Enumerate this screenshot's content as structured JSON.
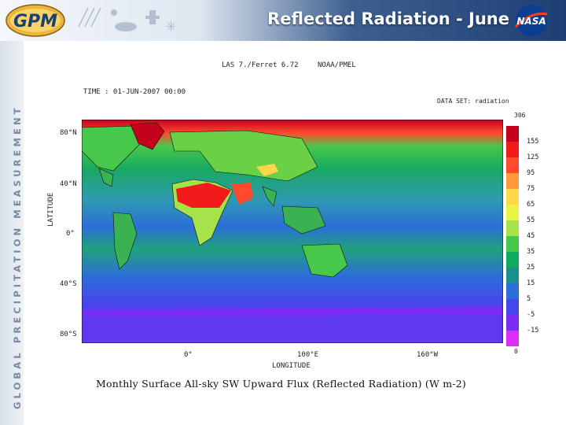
{
  "header": {
    "title": "Reflected Radiation - June",
    "colors": {
      "header_blue": "#1d3f73",
      "title_text": "#ffffff"
    }
  },
  "logos": {
    "gpm": "GPM",
    "nasa": "NASA"
  },
  "sidebar": {
    "text": "GLOBAL PRECIPITATION MEASUREMENT"
  },
  "figure": {
    "software": "LAS 7./Ferret 6.72",
    "org": "NOAA/PMEL",
    "time": "TIME : 01-JUN-2007 00:00",
    "dataset": "DATA SET: radiation",
    "y_axis_title": "LATITUDE",
    "x_axis_title": "LONGITUDE",
    "lat_ticks": [
      "80°N",
      "40°N",
      "0°",
      "40°S",
      "80°S"
    ],
    "lon_ticks": [
      "0°",
      "100°E",
      "160°W"
    ],
    "colorbar": {
      "max_label": "306",
      "min_label": "0",
      "labels": [
        "155",
        "125",
        "95",
        "75",
        "65",
        "55",
        "45",
        "35",
        "25",
        "15",
        "5",
        "-5",
        "-15"
      ],
      "colors": [
        "#c4001c",
        "#f21b1b",
        "#ff4a2e",
        "#ff9a3a",
        "#ffd54a",
        "#e9f542",
        "#a6e24a",
        "#47c84b",
        "#11a95e",
        "#1c8e8c",
        "#2c6ed8",
        "#4646ec",
        "#7c2cf2",
        "#d92ff7"
      ]
    },
    "caption": "Monthly Surface All-sky SW Upward Flux (Reflected Radiation) (W m-2)"
  }
}
